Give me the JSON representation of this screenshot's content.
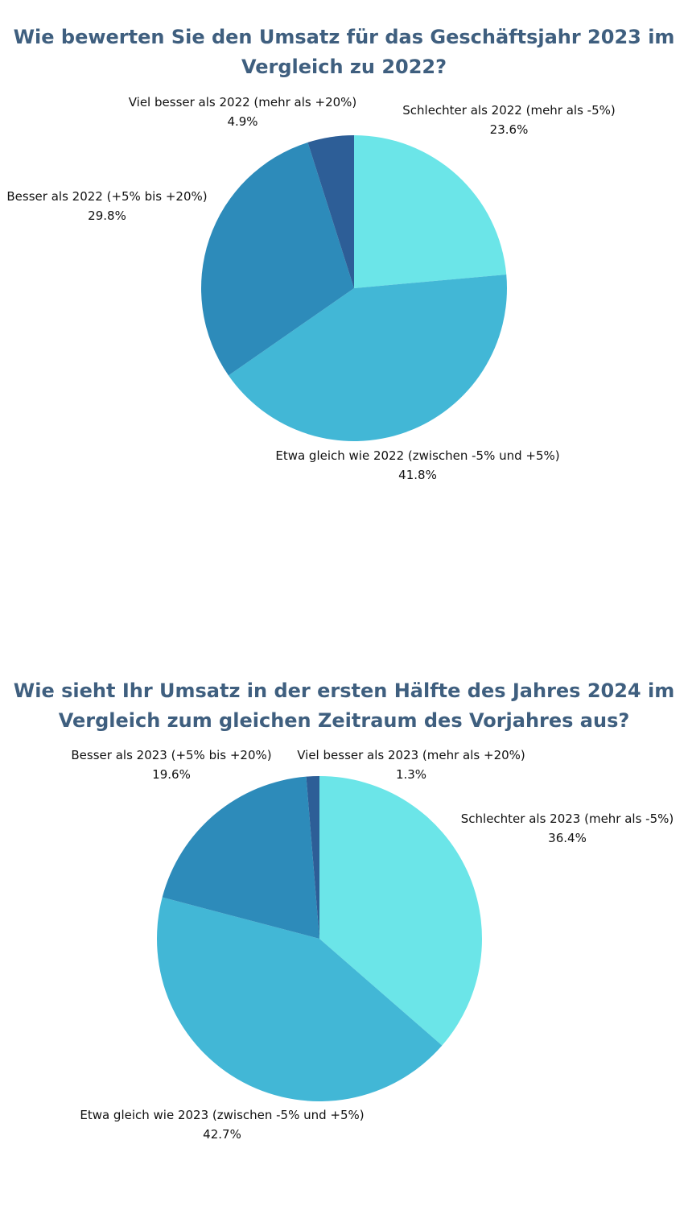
{
  "chart_data": [
    {
      "type": "pie",
      "title": "Wie bewerten Sie den Umsatz für das Geschäftsjahr 2023 im Vergleich zu 2022?",
      "categories": [
        "Schlechter als 2022 (mehr als -5%)",
        "Etwa gleich wie 2022 (zwischen -5% und +5%)",
        "Besser als 2022 (+5% bis +20%)",
        "Viel besser als 2022 (mehr als +20%)"
      ],
      "values": [
        23.6,
        41.8,
        29.8,
        4.9
      ],
      "value_labels": [
        "23.6%",
        "41.8%",
        "29.8%",
        "4.9%"
      ],
      "colors": [
        "#6be5e8",
        "#42b7d6",
        "#2d8bba",
        "#2d5e97"
      ],
      "start_angle": "12 o'clock",
      "direction": "clockwise"
    },
    {
      "type": "pie",
      "title": "Wie sieht Ihr Umsatz in der ersten Hälfte des Jahres 2024 im Vergleich zum gleichen Zeitraum des Vorjahres aus?",
      "categories": [
        "Schlechter als 2023 (mehr als -5%)",
        "Etwa gleich wie 2023 (zwischen -5% und +5%)",
        "Besser als 2023 (+5% bis +20%)",
        "Viel besser als 2023 (mehr als +20%)"
      ],
      "values": [
        36.4,
        42.7,
        19.6,
        1.3
      ],
      "value_labels": [
        "36.4%",
        "42.7%",
        "19.6%",
        "1.3%"
      ],
      "colors": [
        "#6be5e8",
        "#42b7d6",
        "#2d8bba",
        "#2d5e97"
      ],
      "start_angle": "12 o'clock",
      "direction": "clockwise"
    }
  ]
}
